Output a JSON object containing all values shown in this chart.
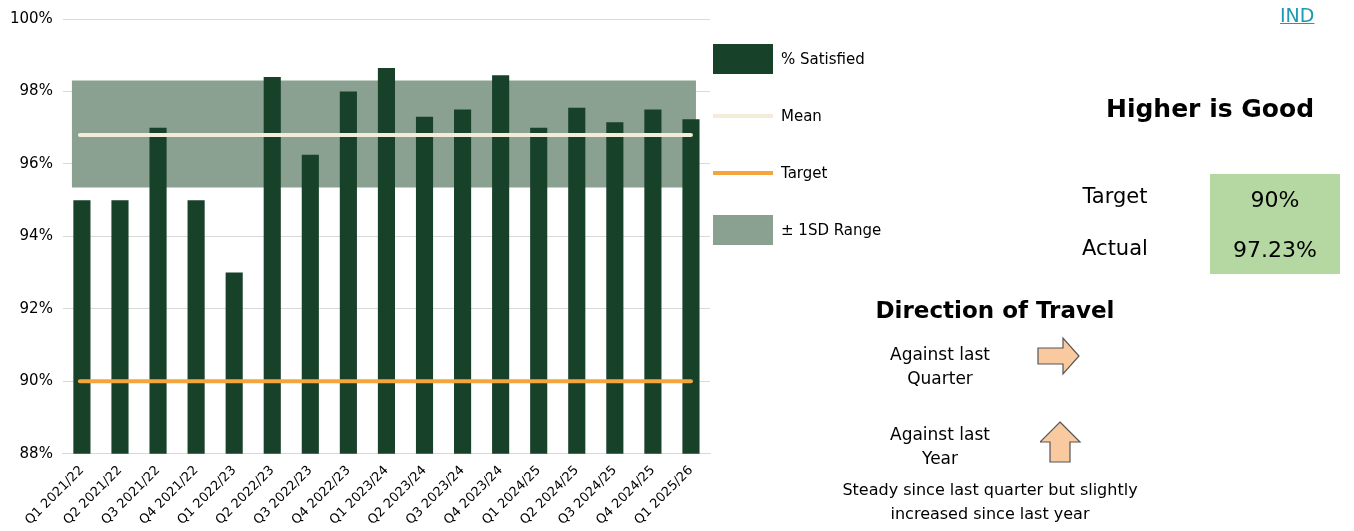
{
  "chart_data": [
    {
      "type": "bar",
      "categories": [
        "Q1 2021/22",
        "Q2 2021/22",
        "Q3 2021/22",
        "Q4 2021/22",
        "Q1 2022/23",
        "Q2 2022/23",
        "Q3 2022/23",
        "Q4 2022/23",
        "Q1 2023/24",
        "Q2 2023/24",
        "Q3 2023/24",
        "Q4 2023/24",
        "Q1 2024/25",
        "Q2 2024/25",
        "Q3 2024/25",
        "Q4 2024/25",
        "Q1 2025/26"
      ],
      "series": [
        {
          "name": "% Satisfied",
          "color": "#18412a",
          "values": [
            95,
            95,
            97,
            95,
            93,
            98.4,
            96.25,
            98,
            98.65,
            97.3,
            97.5,
            98.45,
            97,
            97.55,
            97.15,
            97.5,
            97.23
          ]
        }
      ],
      "ylim": [
        88,
        100
      ],
      "yticks": [
        {
          "value": 88,
          "label": "88%"
        },
        {
          "value": 90,
          "label": "90%"
        },
        {
          "value": 92,
          "label": "92%"
        },
        {
          "value": 94,
          "label": "94%"
        },
        {
          "value": 96,
          "label": "96%"
        },
        {
          "value": 98,
          "label": "98%"
        },
        {
          "value": 100,
          "label": "100%"
        }
      ],
      "grid": "y",
      "legend": "right",
      "bands": [
        {
          "axis": "y",
          "from": 95.35,
          "to": 98.3,
          "label": "± 1SD Range",
          "color": "#8aa192"
        }
      ],
      "ref_lines": [
        {
          "axis": "y",
          "value": 96.8,
          "label": "Mean",
          "color": "#f3ecd9"
        },
        {
          "axis": "y",
          "value": 90,
          "label": "Target",
          "color": "#f4a53c"
        }
      ]
    },
    {
      "type": "other",
      "title": "Higher is Good",
      "annotations": [
        "IND",
        "Target",
        "90%",
        "Actual",
        "97.23%",
        "Direction of Travel",
        "Against last Quarter",
        "Against last Year",
        "Steady since last quarter but slightly increased since last year"
      ]
    }
  ]
}
